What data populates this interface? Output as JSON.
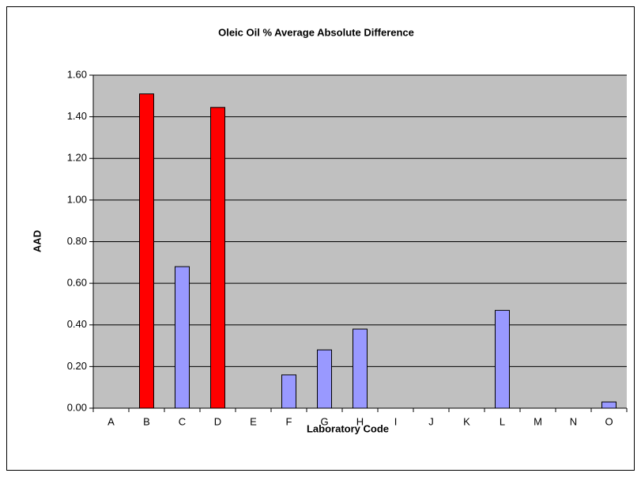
{
  "chart_data": {
    "type": "bar",
    "title": "Oleic Oil % Average Absolute Difference",
    "xlabel": "Laboratory Code",
    "ylabel": "AAD",
    "categories": [
      "A",
      "B",
      "C",
      "D",
      "E",
      "F",
      "G",
      "H",
      "I",
      "J",
      "K",
      "L",
      "M",
      "N",
      "O"
    ],
    "values": [
      null,
      1.51,
      0.68,
      1.445,
      null,
      0.16,
      0.28,
      0.38,
      null,
      null,
      null,
      0.47,
      null,
      null,
      0.03
    ],
    "colors": [
      "#9999ff",
      "#ff0000",
      "#9999ff",
      "#ff0000",
      "#9999ff",
      "#9999ff",
      "#9999ff",
      "#9999ff",
      "#9999ff",
      "#9999ff",
      "#9999ff",
      "#9999ff",
      "#9999ff",
      "#9999ff",
      "#9999ff"
    ],
    "plot_background": "#c0c0c0",
    "ylim": [
      0,
      1.6
    ],
    "yticks": [
      {
        "value": 0,
        "label": "0.00"
      },
      {
        "value": 0.2,
        "label": "0.20"
      },
      {
        "value": 0.4,
        "label": "0.40"
      },
      {
        "value": 0.6,
        "label": "0.60"
      },
      {
        "value": 0.8,
        "label": "0.80"
      },
      {
        "value": 1.0,
        "label": "1.00"
      },
      {
        "value": 1.2,
        "label": "1.20"
      },
      {
        "value": 1.4,
        "label": "1.40"
      },
      {
        "value": 1.6,
        "label": "1.60"
      }
    ],
    "grid": true
  }
}
